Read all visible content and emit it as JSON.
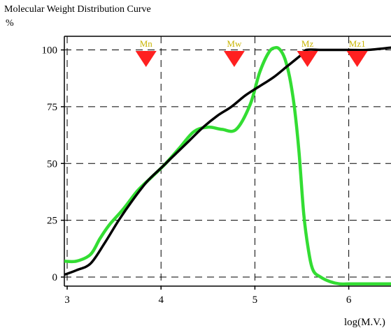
{
  "chart_data": {
    "type": "line",
    "title": "Molecular Weight Distribution Curve",
    "ylabel": "%",
    "xlabel": "log(M.V.)",
    "xlim": [
      2.97,
      6.45
    ],
    "ylim": [
      -4,
      106
    ],
    "x_ticks": [
      3,
      4,
      5,
      6
    ],
    "y_ticks": [
      0,
      25,
      50,
      75,
      100
    ],
    "grid": true,
    "series": [
      {
        "color": "#33dd33",
        "x": [
          2.97,
          3.1,
          3.25,
          3.35,
          3.45,
          3.6,
          3.75,
          3.9,
          4.05,
          4.2,
          4.35,
          4.5,
          4.65,
          4.8,
          4.95,
          5.05,
          5.15,
          5.22,
          5.27,
          5.32,
          5.37,
          5.42,
          5.47,
          5.52,
          5.57,
          5.62,
          5.7,
          5.8,
          5.9,
          6.0,
          6.1,
          6.2,
          6.35,
          6.45
        ],
        "y": [
          7,
          7,
          10,
          17,
          23,
          30,
          38,
          44,
          50,
          57,
          64,
          66,
          65,
          65,
          76,
          90,
          99,
          101,
          100,
          96,
          88,
          75,
          55,
          28,
          12,
          3,
          0,
          -2,
          -3,
          -3,
          -3,
          -3,
          -3,
          -3
        ]
      },
      {
        "color": "#000000",
        "x": [
          2.97,
          3.1,
          3.25,
          3.4,
          3.55,
          3.7,
          3.85,
          4.0,
          4.15,
          4.3,
          4.45,
          4.6,
          4.75,
          4.9,
          5.05,
          5.2,
          5.35,
          5.5,
          5.55,
          5.7,
          5.85,
          6.0,
          6.2,
          6.45
        ],
        "y": [
          1,
          3,
          6,
          15,
          25,
          34,
          42,
          48,
          54,
          60,
          66,
          71,
          75,
          80,
          84,
          88,
          93,
          98,
          100,
          100,
          100,
          100,
          100,
          101
        ]
      }
    ],
    "markers": [
      {
        "label": "Mn",
        "x": 3.84,
        "color": "#ff2020"
      },
      {
        "label": "Mw",
        "x": 4.78,
        "color": "#ff2020"
      },
      {
        "label": "Mz",
        "x": 5.56,
        "color": "#ff2020"
      },
      {
        "label": "Mz1",
        "x": 6.09,
        "color": "#ff2020"
      }
    ]
  }
}
